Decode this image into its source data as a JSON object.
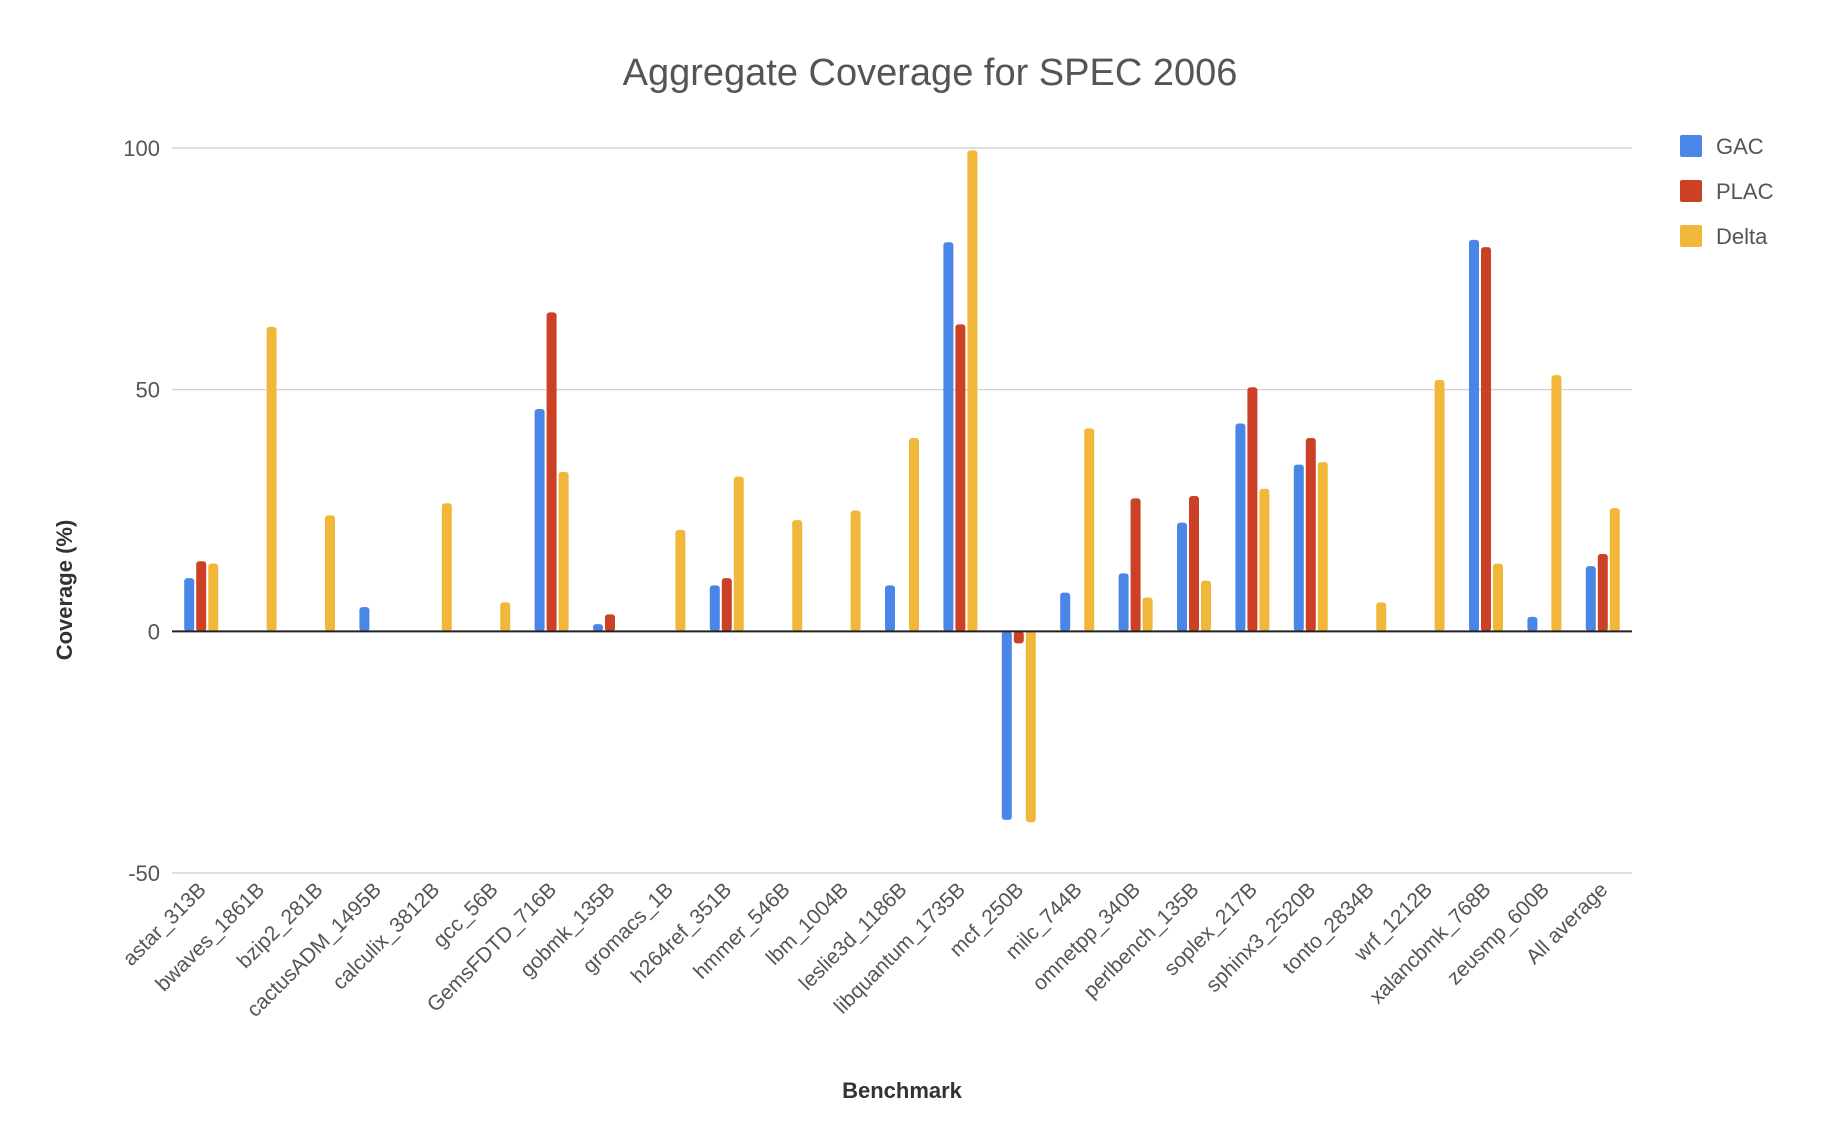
{
  "chart_data": {
    "type": "bar",
    "title": "Aggregate Coverage for SPEC 2006",
    "xlabel": "Benchmark",
    "ylabel": "Coverage (%)",
    "ylim": [
      -50,
      100
    ],
    "yticks": [
      -50,
      0,
      50,
      100
    ],
    "grid": true,
    "legend_position": "right",
    "categories": [
      "astar_313B",
      "bwaves_1861B",
      "bzip2_281B",
      "cactusADM_1495B",
      "calculix_3812B",
      "gcc_56B",
      "GemsFDTD_716B",
      "gobmk_135B",
      "gromacs_1B",
      "h264ref_351B",
      "hmmer_546B",
      "lbm_1004B",
      "leslie3d_1186B",
      "libquantum_1735B",
      "mcf_250B",
      "milc_744B",
      "omnetpp_340B",
      "perlbench_135B",
      "soplex_217B",
      "sphinx3_2520B",
      "tonto_2834B",
      "wrf_1212B",
      "xalancbmk_768B",
      "zeusmp_600B",
      "All average"
    ],
    "series": [
      {
        "name": "GAC",
        "color": "#4a86e8",
        "values": [
          11,
          0,
          0,
          5,
          0,
          0,
          46,
          1.5,
          0,
          9.5,
          0,
          0,
          9.5,
          80.5,
          -39,
          8,
          12,
          22.5,
          43,
          34.5,
          0,
          0,
          81,
          3,
          13.5
        ]
      },
      {
        "name": "PLAC",
        "color": "#cc4125",
        "values": [
          14.5,
          0,
          0,
          0,
          0,
          0,
          66,
          3.5,
          0,
          11,
          0,
          0,
          0,
          63.5,
          -2.5,
          0,
          27.5,
          28,
          50.5,
          40,
          0,
          0,
          79.5,
          0,
          16
        ]
      },
      {
        "name": "Delta",
        "color": "#f1b73a",
        "values": [
          14,
          63,
          24,
          0,
          26.5,
          6,
          33,
          0,
          21,
          32,
          23,
          25,
          40,
          99.5,
          -39.5,
          42,
          7,
          10.5,
          29.5,
          35,
          6,
          52,
          14,
          53,
          25.5
        ]
      }
    ]
  }
}
